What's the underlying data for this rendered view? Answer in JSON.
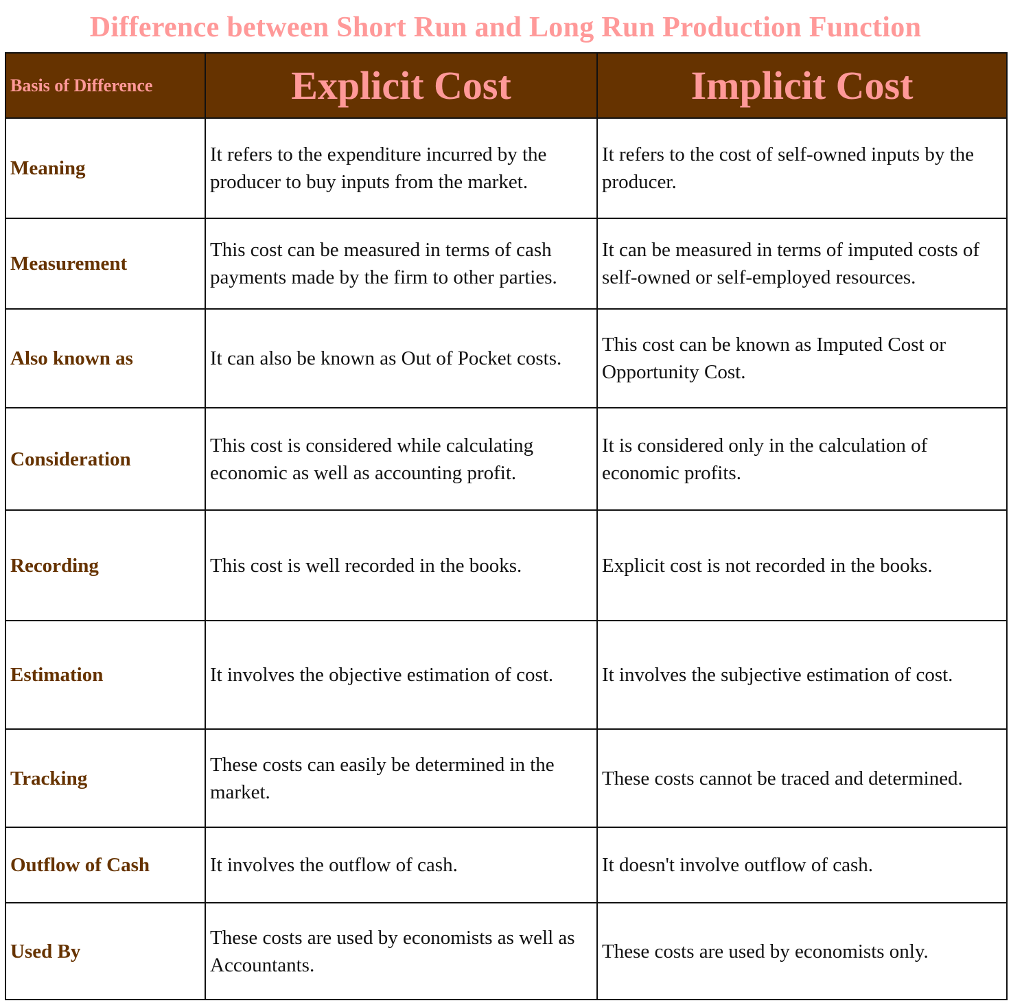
{
  "title": "Difference between Short Run and Long Run Production Function",
  "colors": {
    "title": "#ff9999",
    "header_bg": "#663300",
    "label": "#663300"
  },
  "headers": [
    "Basis of Difference",
    "Explicit Cost",
    "Implicit Cost"
  ],
  "rows": [
    {
      "basis": "Meaning",
      "explicit": "It refers to the expenditure incurred by the producer to buy inputs from the market.",
      "implicit": "It refers to the cost of self-owned inputs by the producer."
    },
    {
      "basis": "Measurement",
      "explicit": "This cost can be measured in terms of cash payments made by the firm to other parties.",
      "implicit": "It can be measured in terms of imputed costs of self-owned or self-employed resources."
    },
    {
      "basis": "Also known as",
      "explicit": "It can also be known as Out of Pocket costs.",
      "implicit": "This cost can be known as Imputed Cost or Opportunity Cost."
    },
    {
      "basis": "Consideration",
      "explicit": "This cost is considered while calculating economic as well as accounting profit.",
      "implicit": "It is considered only in the calculation of economic profits."
    },
    {
      "basis": "Recording",
      "explicit": "This cost is well recorded in the books.",
      "implicit": "Explicit cost is not recorded in the books."
    },
    {
      "basis": "Estimation",
      "explicit": "It involves the objective estimation of cost.",
      "implicit": "It involves the subjective estimation of cost."
    },
    {
      "basis": "Tracking",
      "explicit": "These costs can easily be determined in the market.",
      "implicit": "These costs cannot be traced and determined."
    },
    {
      "basis": "Outflow of Cash",
      "explicit": "It involves the outflow of cash.",
      "implicit": "It doesn't involve outflow of cash."
    },
    {
      "basis": "Used By",
      "explicit": "These costs are used by economists as well as Accountants.",
      "implicit": "These costs are used by economists only."
    }
  ]
}
